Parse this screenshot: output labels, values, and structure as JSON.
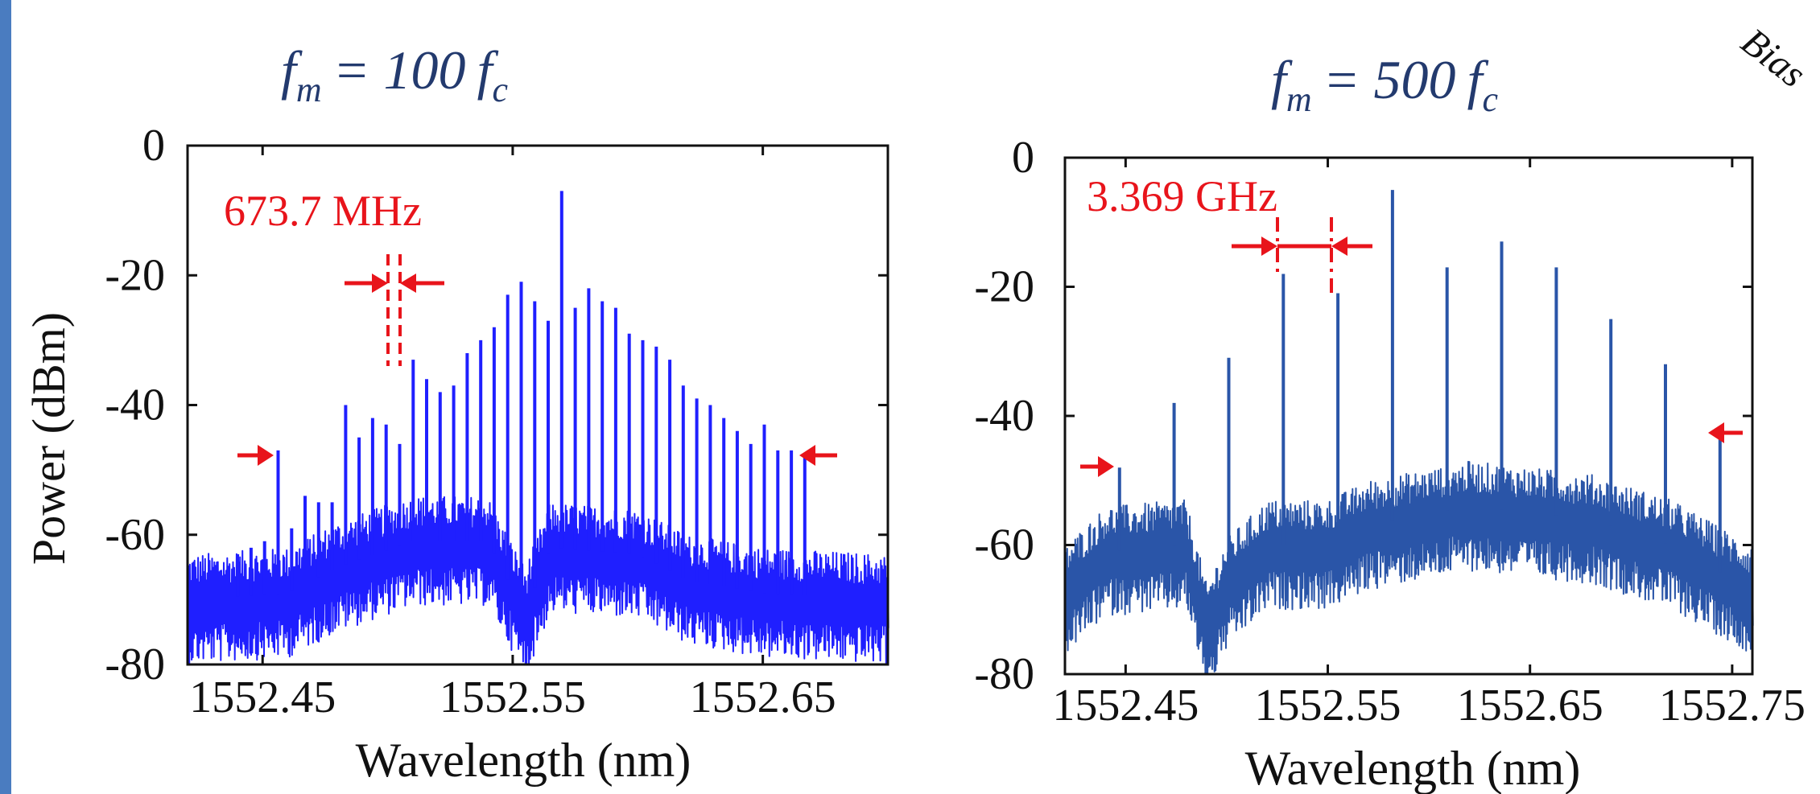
{
  "colors": {
    "left_series": "#1f1fff",
    "right_series": "#2a55a8",
    "annotation": "#e8141b",
    "title": "#233a6e",
    "edge_bar": "#4a7cc0"
  },
  "corner_text": "Bias",
  "chart_data": [
    {
      "type": "line",
      "title_parts": {
        "f": "f",
        "m": "m",
        "eq": "= 100",
        "fc": "f",
        "c": "c"
      },
      "xlabel": "Wavelength (nm)",
      "ylabel": "Power (dBm)",
      "xlim": [
        1552.42,
        1552.7
      ],
      "ylim": [
        -80,
        0
      ],
      "xticks": [
        1552.45,
        1552.55,
        1552.65
      ],
      "xtick_labels": [
        "1552.45",
        "1552.55",
        "1552.65"
      ],
      "yticks": [
        0,
        -20,
        -40,
        -60,
        -80
      ],
      "ytick_labels": [
        "0",
        "-20",
        "-40",
        "-60",
        "-80"
      ],
      "grid": false,
      "spacing_label": "673.7 MHz",
      "noise_floor": [
        [
          1552.42,
          -70
        ],
        [
          1552.46,
          -69
        ],
        [
          1552.48,
          -65
        ],
        [
          1552.51,
          -61
        ],
        [
          1552.54,
          -61
        ],
        [
          1552.555,
          -72
        ],
        [
          1552.565,
          -62
        ],
        [
          1552.6,
          -63
        ],
        [
          1552.62,
          -67
        ],
        [
          1552.65,
          -69
        ],
        [
          1552.7,
          -70
        ]
      ],
      "peaks": {
        "x": [
          1552.44,
          1552.4454,
          1552.4508,
          1552.4562,
          1552.4616,
          1552.467,
          1552.4724,
          1552.4778,
          1552.4832,
          1552.4886,
          1552.494,
          1552.4994,
          1552.5048,
          1552.5102,
          1552.5156,
          1552.521,
          1552.5264,
          1552.5318,
          1552.5372,
          1552.5426,
          1552.548,
          1552.5534,
          1552.5588,
          1552.5642,
          1552.5696,
          1552.575,
          1552.5804,
          1552.5858,
          1552.5912,
          1552.5966,
          1552.602,
          1552.6074,
          1552.6128,
          1552.6182,
          1552.6236,
          1552.629,
          1552.6344,
          1552.6398,
          1552.6452,
          1552.6506,
          1552.656,
          1552.6614,
          1552.6668
        ],
        "y": [
          -63,
          -62,
          -61,
          -47,
          -59,
          -54,
          -55,
          -55,
          -40,
          -45,
          -42,
          -43,
          -46,
          -33,
          -36,
          -38,
          -37,
          -32,
          -30,
          -28,
          -23,
          -21,
          -24,
          -27,
          -7,
          -25,
          -22,
          -24,
          -25,
          -29,
          -30,
          -31,
          -33,
          -37,
          -39,
          -40,
          -42,
          -44,
          -46,
          -43,
          -47,
          -47,
          -48
        ]
      },
      "edge_comb_lines": [
        1552.4562,
        1552.6668
      ]
    },
    {
      "type": "line",
      "title_parts": {
        "f": "f",
        "m": "m",
        "eq": "= 500",
        "fc": "f",
        "c": "c"
      },
      "xlabel": "Wavelength (nm)",
      "ylabel": "",
      "xlim": [
        1552.42,
        1552.76
      ],
      "ylim": [
        -80,
        0
      ],
      "xticks": [
        1552.45,
        1552.55,
        1552.65,
        1552.75
      ],
      "xtick_labels": [
        "1552.45",
        "1552.55",
        "1552.65",
        "1552.75"
      ],
      "yticks": [
        0,
        -20,
        -40,
        -60,
        -80
      ],
      "ytick_labels": [
        "0",
        "-20",
        "-40",
        "-60",
        "-80"
      ],
      "grid": false,
      "spacing_label": "3.369 GHz",
      "noise_floor": [
        [
          1552.42,
          -67
        ],
        [
          1552.44,
          -61
        ],
        [
          1552.48,
          -60
        ],
        [
          1552.49,
          -73
        ],
        [
          1552.5,
          -66
        ],
        [
          1552.52,
          -60
        ],
        [
          1552.55,
          -60
        ],
        [
          1552.57,
          -57
        ],
        [
          1552.62,
          -54
        ],
        [
          1552.68,
          -56
        ],
        [
          1552.72,
          -60
        ],
        [
          1552.76,
          -67
        ]
      ],
      "peaks": {
        "x": [
          1552.447,
          1552.474,
          1552.501,
          1552.528,
          1552.555,
          1552.582,
          1552.609,
          1552.636,
          1552.663,
          1552.69,
          1552.717,
          1552.744
        ],
        "y": [
          -48,
          -38,
          -31,
          -18,
          -21,
          -5,
          -17,
          -13,
          -17,
          -25,
          -32,
          -43
        ]
      },
      "edge_comb_lines": [
        1552.447,
        1552.744
      ]
    }
  ]
}
